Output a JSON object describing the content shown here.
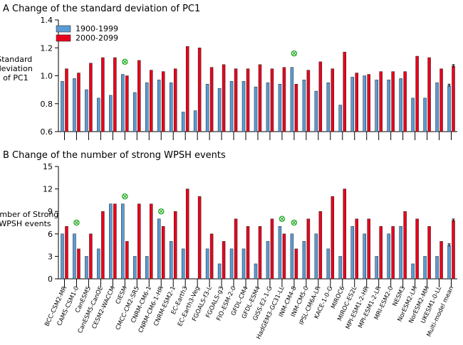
{
  "models": [
    "BCC-CSM2-MR",
    "CAMS-CSM1-0",
    "CanESM5",
    "CanESM5-CanOE",
    "CESM2-WACCM",
    "CIESM",
    "CMCC-CM2-SR5",
    "CNRM-CM6-1",
    "CNRM-CM6-1-HR",
    "CNRM-ESM2-1",
    "EC-Earth3",
    "EC-Earth3-Veg",
    "FGOALS-f3-L",
    "FGOALS-g3",
    "FIO-ESM-2-0",
    "GFDL-CM4",
    "GFDL-ESM4",
    "GISS-E2-1-G",
    "HadGEM3-GC31-LL",
    "INM-CM4-8",
    "INM-CM5-0",
    "IPSL-CM6A-LR",
    "KACE-1-0-G",
    "MIROC6",
    "MIROC-ES2L",
    "MPI-ESM1-2-HR",
    "MPI-ESM1-2-LR",
    "MRI-ESM2-0",
    "NESM3",
    "NorESM2-LM",
    "NorESM2-MM",
    "UKESM1-0-LL",
    "Multi-model mean"
  ],
  "legend": {
    "series1": "1900-1999",
    "series2": "2000-2099"
  },
  "colors": {
    "series1": "#5b9bd5",
    "series2": "#e8001c",
    "marker": "#22aa22"
  },
  "chart_data": [
    {
      "type": "bar",
      "title": "A Change of the standard deviation of PC1",
      "ylabel": "Standard deviation of PC1",
      "ylabel_lines": [
        "Standard",
        "deviation",
        "of PC1"
      ],
      "ylim": [
        0.6,
        1.4
      ],
      "yticks": [
        "0.6",
        "0.8",
        "1.0",
        "1.2",
        "1.4"
      ],
      "legend_position": "top-left",
      "series": [
        {
          "name": "1900-1999",
          "values": [
            0.96,
            0.98,
            0.9,
            0.84,
            0.86,
            1.01,
            0.88,
            0.95,
            0.97,
            0.95,
            0.74,
            0.75,
            0.94,
            0.91,
            0.96,
            0.96,
            0.92,
            0.95,
            0.94,
            1.06,
            0.97,
            0.89,
            0.95,
            0.79,
            0.99,
            1.0,
            0.97,
            0.97,
            0.98,
            0.84,
            0.84,
            0.95,
            0.93
          ]
        },
        {
          "name": "2000-2099",
          "values": [
            1.05,
            1.02,
            1.09,
            1.13,
            1.13,
            1.0,
            1.11,
            1.04,
            1.03,
            1.05,
            1.21,
            1.2,
            1.06,
            1.08,
            1.05,
            1.05,
            1.08,
            1.05,
            1.06,
            0.94,
            1.04,
            1.1,
            1.05,
            1.17,
            1.02,
            1.01,
            1.03,
            1.03,
            1.03,
            1.14,
            1.13,
            1.05,
            1.07
          ]
        }
      ],
      "markers": [
        {
          "category": "CIESM",
          "value": 1.1
        },
        {
          "category": "INM-CM4-8",
          "value": 1.16
        }
      ]
    },
    {
      "type": "bar",
      "title": "B Change of the number of strong WPSH events",
      "ylabel": "Number of Strong WPSH events",
      "ylabel_lines": [
        "Number of Strong",
        "WPSH events"
      ],
      "ylim": [
        0,
        15
      ],
      "yticks": [
        "0",
        "3",
        "6",
        "9",
        "12",
        "15"
      ],
      "series": [
        {
          "name": "1900-1999",
          "values": [
            6,
            6,
            3,
            4,
            10,
            10,
            3,
            3,
            8,
            5,
            4,
            0,
            4,
            2,
            4,
            4,
            2,
            5,
            7,
            6,
            5,
            6,
            4,
            3,
            7,
            6,
            3,
            6,
            7,
            2,
            3,
            3,
            4.5
          ]
        },
        {
          "name": "2000-2099",
          "values": [
            7,
            4,
            6,
            9,
            10,
            5,
            10,
            10,
            7,
            9,
            12,
            11,
            6,
            5,
            8,
            7,
            7,
            8,
            6,
            4,
            8,
            9,
            11,
            12,
            8,
            8,
            7,
            7,
            9,
            8,
            7,
            5,
            7.8
          ]
        }
      ],
      "markers": [
        {
          "category": "CAMS-CSM1-0",
          "value": 7.5
        },
        {
          "category": "CIESM",
          "value": 11.0
        },
        {
          "category": "CNRM-CM6-1-HR",
          "value": 9.0
        },
        {
          "category": "HadGEM3-GC31-LL",
          "value": 8.0
        },
        {
          "category": "INM-CM4-8",
          "value": 7.5
        }
      ]
    }
  ]
}
